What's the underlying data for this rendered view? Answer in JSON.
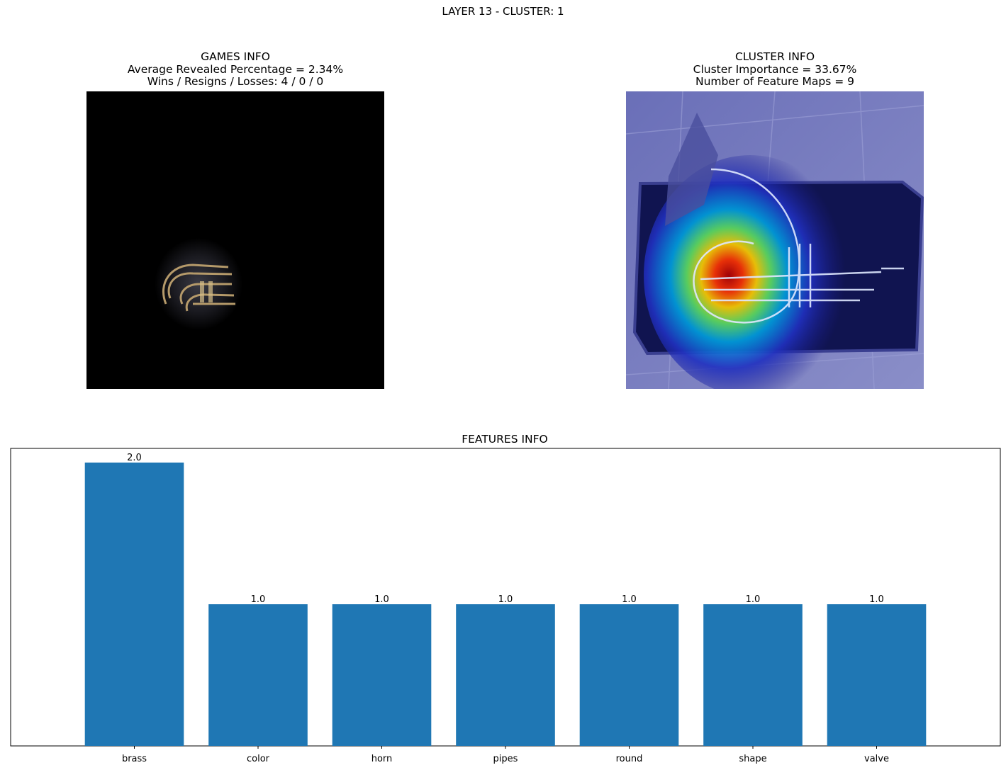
{
  "figure": {
    "suptitle": "LAYER 13 - CLUSTER: 1"
  },
  "games_panel": {
    "title_lines": [
      "GAMES INFO",
      "Average Revealed Percentage = 2.34%",
      "Wins / Resigns / Losses: 4 / 0 / 0"
    ]
  },
  "cluster_panel": {
    "title_lines": [
      "CLUSTER INFO",
      "Cluster Importance = 33.67%",
      "Number of Feature Maps = 9"
    ]
  },
  "colors": {
    "bar": "#1f77b4",
    "axis": "#000000",
    "masked_background": "#000000",
    "heatmap_tint": "#4a4fb0"
  },
  "chart_data": {
    "type": "bar",
    "title": "FEATURES INFO",
    "categories": [
      "brass",
      "color",
      "horn",
      "pipes",
      "round",
      "shape",
      "valve"
    ],
    "values": [
      2.0,
      1.0,
      1.0,
      1.0,
      1.0,
      1.0,
      1.0
    ],
    "value_labels": [
      "2.0",
      "1.0",
      "1.0",
      "1.0",
      "1.0",
      "1.0",
      "1.0"
    ],
    "xlabel": "",
    "ylabel": "",
    "ylim": [
      0,
      2.1
    ],
    "yticks_visible": false,
    "grid": false,
    "legend": "none"
  }
}
